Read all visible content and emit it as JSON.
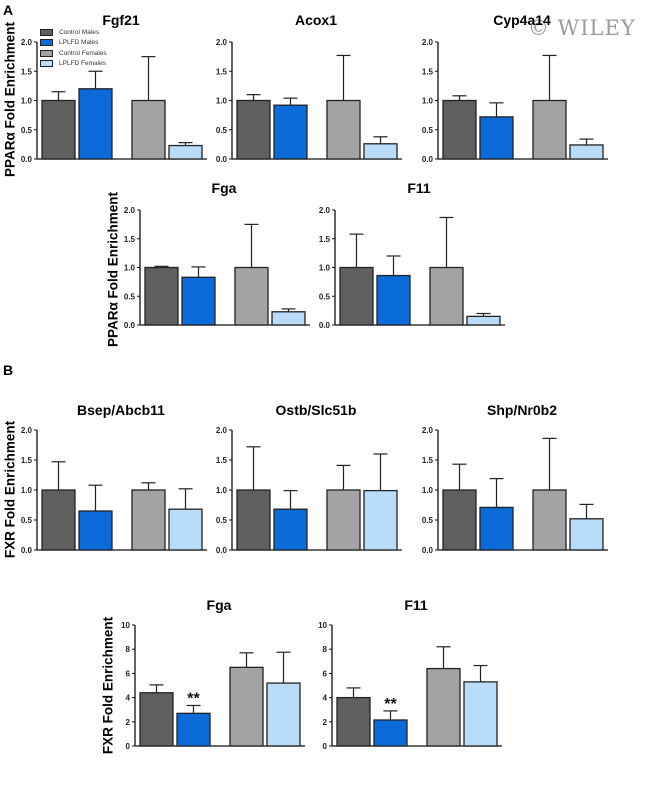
{
  "panels": [
    {
      "letter": "A",
      "ylabel": "PPARα Fold Enrichment"
    },
    {
      "letter": "B",
      "ylabel": "FXR Fold Enrichment"
    }
  ],
  "legend": [
    {
      "label": "Control Males",
      "color": "#5f5f5f"
    },
    {
      "label": "LPLFD Males",
      "color": "#0a6bd9"
    },
    {
      "label": "Control Females",
      "color": "#a3a3a5"
    },
    {
      "label": "LPLFD Females",
      "color": "#b9dcfb"
    }
  ],
  "watermark": "© WILEY",
  "chart_data": [
    {
      "type": "bar",
      "panel": "A",
      "title": "Fgf21",
      "ylabel": "PPARα Fold Enrichment",
      "ylim": [
        0,
        2
      ],
      "yticks": [
        "0.0",
        "0.5",
        "1.0",
        "1.5",
        "2.0"
      ],
      "values": [
        1.0,
        1.2,
        1.0,
        0.23
      ],
      "error": [
        0.15,
        0.3,
        0.75,
        0.05
      ],
      "significance": [
        "",
        "",
        "",
        ""
      ]
    },
    {
      "type": "bar",
      "panel": "A",
      "title": "Acox1",
      "ylim": [
        0,
        2
      ],
      "yticks": [
        "0.0",
        "0.5",
        "1.0",
        "1.5",
        "2.0"
      ],
      "values": [
        1.0,
        0.92,
        1.0,
        0.26
      ],
      "error": [
        0.1,
        0.12,
        0.77,
        0.12
      ],
      "significance": [
        "",
        "",
        "",
        ""
      ]
    },
    {
      "type": "bar",
      "panel": "A",
      "title": "Cyp4a14",
      "ylim": [
        0,
        2
      ],
      "yticks": [
        "0.0",
        "0.5",
        "1.0",
        "1.5",
        "2.0"
      ],
      "values": [
        1.0,
        0.72,
        1.0,
        0.24
      ],
      "error": [
        0.08,
        0.24,
        0.77,
        0.1
      ],
      "significance": [
        "",
        "",
        "",
        ""
      ]
    },
    {
      "type": "bar",
      "panel": "A",
      "title": "Fga",
      "ylabel": "PPARα Fold Enrichment",
      "ylim": [
        0,
        2
      ],
      "yticks": [
        "0.0",
        "0.5",
        "1.0",
        "1.5",
        "2.0"
      ],
      "values": [
        1.0,
        0.83,
        1.0,
        0.23
      ],
      "error": [
        0.02,
        0.18,
        0.75,
        0.05
      ],
      "significance": [
        "",
        "",
        "",
        ""
      ]
    },
    {
      "type": "bar",
      "panel": "A",
      "title": "F11",
      "ylim": [
        0,
        2
      ],
      "yticks": [
        "0.0",
        "0.5",
        "1.0",
        "1.5",
        "2.0"
      ],
      "values": [
        1.0,
        0.86,
        1.0,
        0.15
      ],
      "error": [
        0.58,
        0.34,
        0.87,
        0.05
      ],
      "significance": [
        "",
        "",
        "",
        ""
      ]
    },
    {
      "type": "bar",
      "panel": "B",
      "title": "Bsep/Abcb11",
      "ylabel": "FXR Fold Enrichment",
      "ylim": [
        0,
        2
      ],
      "yticks": [
        "0.0",
        "0.5",
        "1.0",
        "1.5",
        "2.0"
      ],
      "values": [
        1.0,
        0.65,
        1.0,
        0.68
      ],
      "error": [
        0.47,
        0.43,
        0.12,
        0.34
      ],
      "significance": [
        "",
        "",
        "",
        ""
      ]
    },
    {
      "type": "bar",
      "panel": "B",
      "title": "Ostb/Slc51b",
      "ylim": [
        0,
        2
      ],
      "yticks": [
        "0.0",
        "0.5",
        "1.0",
        "1.5",
        "2.0"
      ],
      "values": [
        1.0,
        0.68,
        1.0,
        0.99
      ],
      "error": [
        0.72,
        0.31,
        0.41,
        0.61
      ],
      "significance": [
        "",
        "",
        "",
        ""
      ]
    },
    {
      "type": "bar",
      "panel": "B",
      "title": "Shp/Nr0b2",
      "ylim": [
        0,
        2
      ],
      "yticks": [
        "0.0",
        "0.5",
        "1.0",
        "1.5",
        "2.0"
      ],
      "values": [
        1.0,
        0.71,
        1.0,
        0.52
      ],
      "error": [
        0.43,
        0.48,
        0.86,
        0.24
      ],
      "significance": [
        "",
        "",
        "",
        ""
      ]
    },
    {
      "type": "bar",
      "panel": "B",
      "title": "Fga",
      "ylabel": "FXR Fold Enrichment",
      "ylim": [
        0,
        10
      ],
      "yticks": [
        "0",
        "2",
        "4",
        "6",
        "8",
        "10"
      ],
      "values": [
        4.4,
        2.7,
        6.5,
        5.2
      ],
      "error": [
        0.65,
        0.65,
        1.2,
        2.55
      ],
      "significance": [
        "",
        "**",
        "",
        ""
      ]
    },
    {
      "type": "bar",
      "panel": "B",
      "title": "F11",
      "ylim": [
        0,
        10
      ],
      "yticks": [
        "0",
        "2",
        "4",
        "6",
        "8",
        "10"
      ],
      "values": [
        4.0,
        2.15,
        6.4,
        5.3
      ],
      "error": [
        0.8,
        0.75,
        1.8,
        1.35
      ],
      "significance": [
        "",
        "**",
        "",
        ""
      ]
    }
  ]
}
